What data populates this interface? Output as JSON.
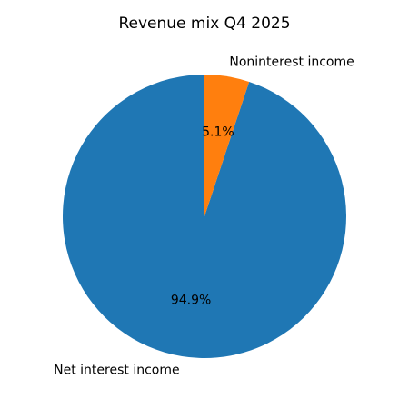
{
  "chart_data": {
    "type": "pie",
    "title": "Revenue mix Q4 2025",
    "categories": [
      "Net interest income",
      "Noninterest income"
    ],
    "values": [
      94.9,
      5.1
    ],
    "value_labels": [
      "94.9%",
      "5.1%"
    ],
    "colors": [
      "#1f77b4",
      "#ff7f0e"
    ]
  }
}
